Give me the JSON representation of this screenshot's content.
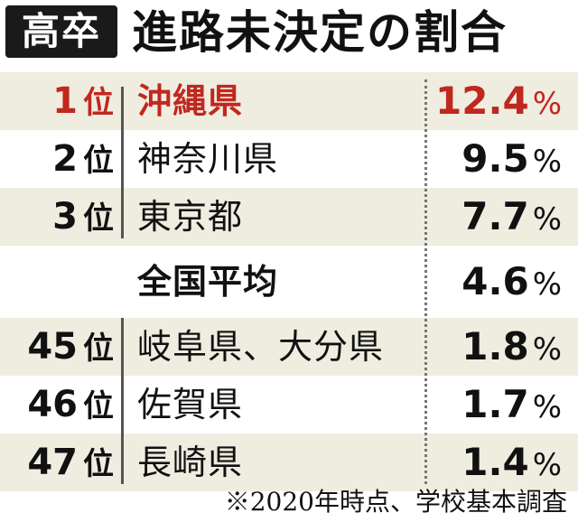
{
  "header": {
    "badge": "高卒",
    "title": "進路未決定の割合"
  },
  "rows": [
    {
      "rank": "1",
      "suffix": "位",
      "prefecture": "沖縄県",
      "value": "12.4",
      "unit": "%"
    },
    {
      "rank": "2",
      "suffix": "位",
      "prefecture": "神奈川県",
      "value": "9.5",
      "unit": "%"
    },
    {
      "rank": "3",
      "suffix": "位",
      "prefecture": "東京都",
      "value": "7.7",
      "unit": "%"
    },
    {
      "rank": "",
      "suffix": "",
      "prefecture": "全国平均",
      "value": "4.6",
      "unit": "%"
    },
    {
      "rank": "45",
      "suffix": "位",
      "prefecture": "岐阜県、大分県",
      "value": "1.8",
      "unit": "%"
    },
    {
      "rank": "46",
      "suffix": "位",
      "prefecture": "佐賀県",
      "value": "1.7",
      "unit": "%"
    },
    {
      "rank": "47",
      "suffix": "位",
      "prefecture": "長崎県",
      "value": "1.4",
      "unit": "%"
    }
  ],
  "footnote": "※2020年時点、学校基本調査",
  "colors": {
    "highlight": "#c0281f",
    "row_shade": "#efede0",
    "badge_bg": "#1a1a1a"
  }
}
